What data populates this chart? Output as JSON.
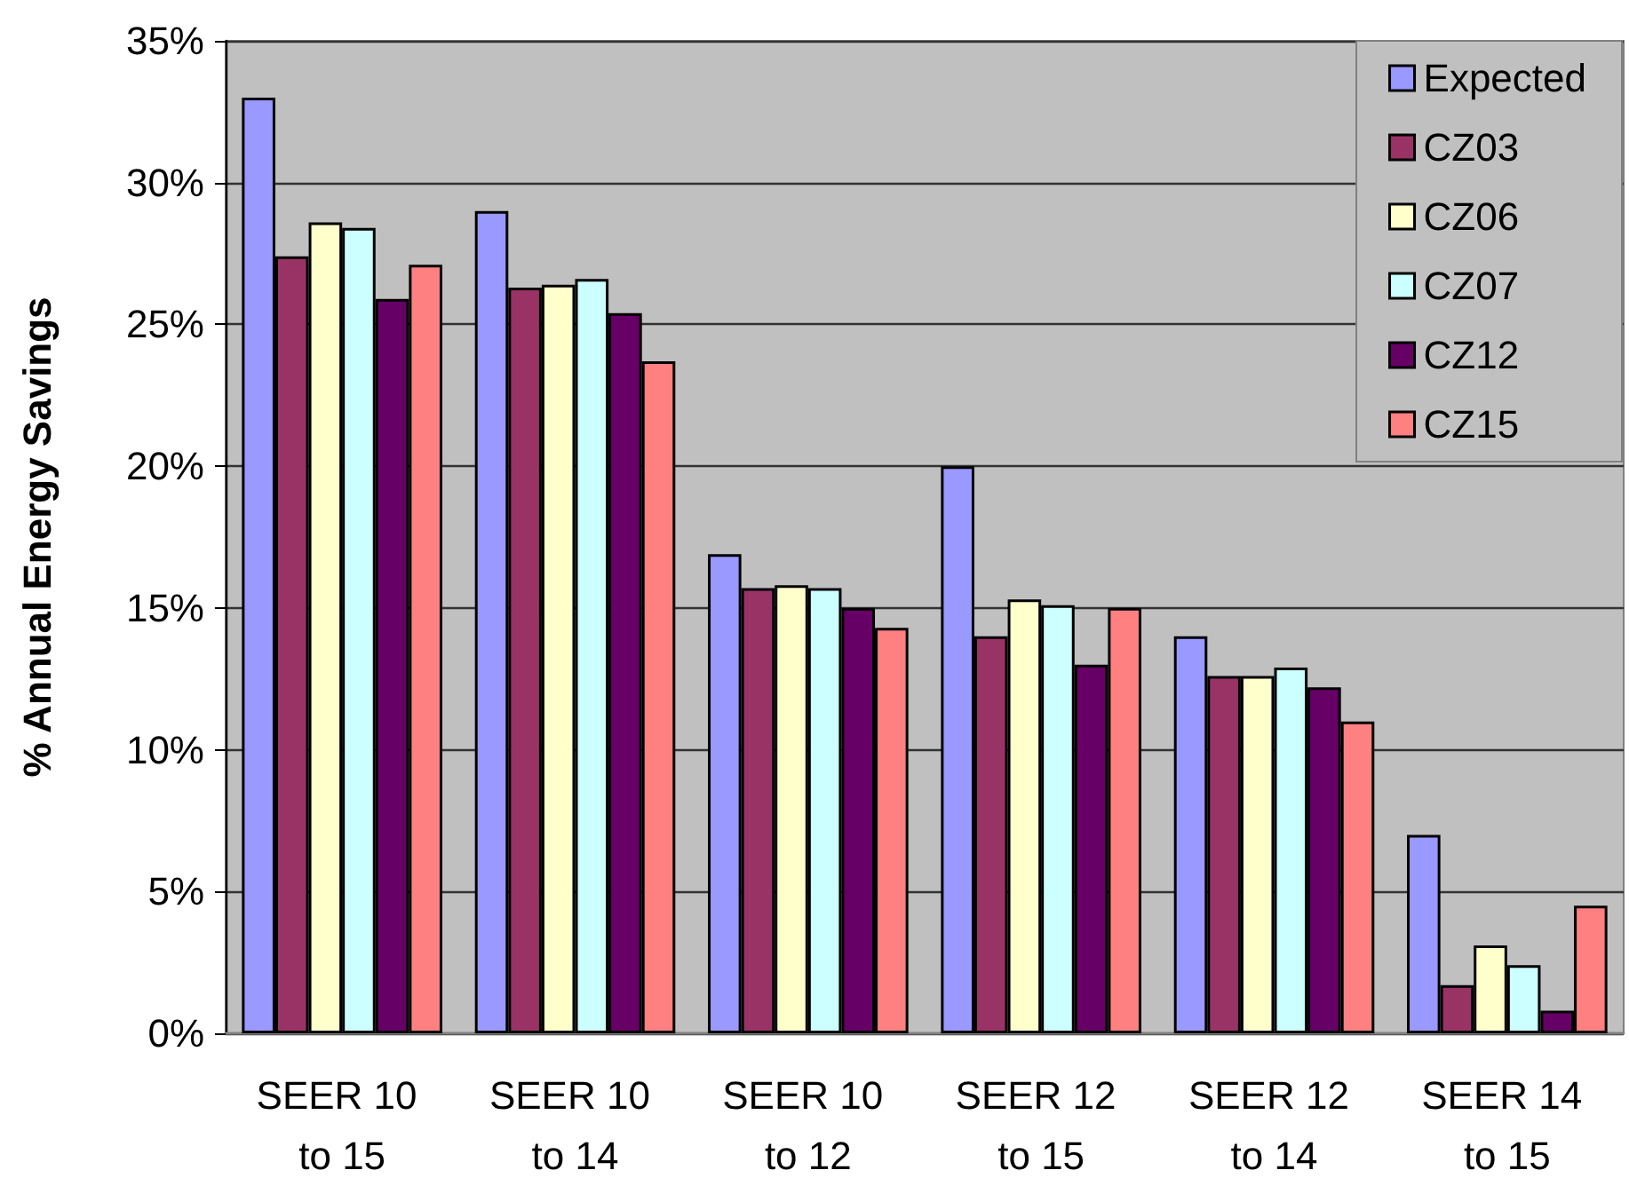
{
  "chart_data": {
    "type": "bar",
    "ylabel": "% Annual Energy Savings",
    "categories": [
      "SEER 10 to 15",
      "SEER 10 to 14",
      "SEER 10 to 12",
      "SEER 12 to 15",
      "SEER 12 to 14",
      "SEER 14 to 15"
    ],
    "series": [
      {
        "name": "Expected",
        "color": "#9999ff",
        "values": [
          33.0,
          29.0,
          16.9,
          20.0,
          14.0,
          7.0
        ]
      },
      {
        "name": "CZ03",
        "color": "#993366",
        "values": [
          27.4,
          26.3,
          15.7,
          14.0,
          12.6,
          1.7
        ]
      },
      {
        "name": "CZ06",
        "color": "#ffffcc",
        "values": [
          28.6,
          26.4,
          15.8,
          15.3,
          12.6,
          3.1
        ]
      },
      {
        "name": "CZ07",
        "color": "#ccffff",
        "values": [
          28.4,
          26.6,
          15.7,
          15.1,
          12.9,
          2.4
        ]
      },
      {
        "name": "CZ12",
        "color": "#660066",
        "values": [
          25.9,
          25.4,
          15.0,
          13.0,
          12.2,
          0.8
        ]
      },
      {
        "name": "CZ15",
        "color": "#ff8080",
        "values": [
          27.1,
          23.7,
          14.3,
          15.0,
          11.0,
          4.5
        ]
      }
    ],
    "ylim": [
      0,
      35
    ],
    "yticks": [
      {
        "value": 0,
        "label": "0%"
      },
      {
        "value": 5,
        "label": "5%"
      },
      {
        "value": 10,
        "label": "10%"
      },
      {
        "value": 15,
        "label": "15%"
      },
      {
        "value": 20,
        "label": "20%"
      },
      {
        "value": 25,
        "label": "25%"
      },
      {
        "value": 30,
        "label": "30%"
      },
      {
        "value": 35,
        "label": "35%"
      }
    ],
    "grid": "y",
    "legend": "top right"
  }
}
